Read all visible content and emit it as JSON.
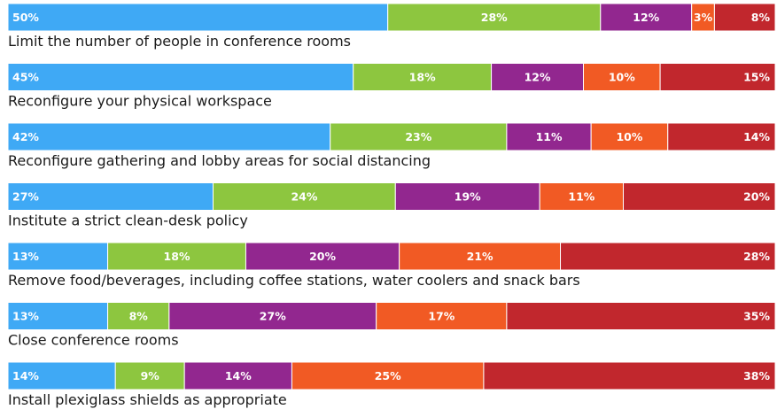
{
  "chart_data": {
    "type": "bar",
    "orientation": "horizontal",
    "stacked": true,
    "normalized_100": true,
    "title": "",
    "xlabel": "",
    "ylabel": "",
    "legend": "none",
    "grid": false,
    "categories": [
      "Limit the number of people in conference rooms",
      "Reconfigure your physical workspace",
      "Reconfigure gathering and lobby areas for social distancing",
      "Institute a strict clean-desk policy",
      "Remove food/beverages, including coffee stations, water coolers and snack bars",
      "Close conference rooms",
      "Install plexiglass shields as appropriate"
    ],
    "series": [
      {
        "color": "#3fa9f5",
        "values": [
          50,
          45,
          42,
          27,
          13,
          13,
          14
        ],
        "labels": [
          "50%",
          "45%",
          "42%",
          "27%",
          "13%",
          "13%",
          "14%"
        ]
      },
      {
        "color": "#8dc63f",
        "values": [
          28,
          18,
          23,
          24,
          18,
          8,
          9
        ],
        "labels": [
          "28%",
          "18%",
          "23%",
          "24%",
          "18%",
          "8%",
          "9%"
        ]
      },
      {
        "color": "#92278f",
        "values": [
          12,
          12,
          11,
          19,
          20,
          27,
          14
        ],
        "labels": [
          "12%",
          "12%",
          "11%",
          "19%",
          "20%",
          "27%",
          "14%"
        ]
      },
      {
        "color": "#f15a24",
        "values": [
          3,
          10,
          10,
          11,
          21,
          17,
          25
        ],
        "labels": [
          "3%",
          "10%",
          "10%",
          "11%",
          "21%",
          "17%",
          "25%"
        ]
      },
      {
        "color": "#c1272d",
        "values": [
          8,
          15,
          14,
          20,
          28,
          35,
          38
        ],
        "labels": [
          "8%",
          "15%",
          "14%",
          "20%",
          "28%",
          "35%",
          "38%"
        ]
      }
    ]
  }
}
